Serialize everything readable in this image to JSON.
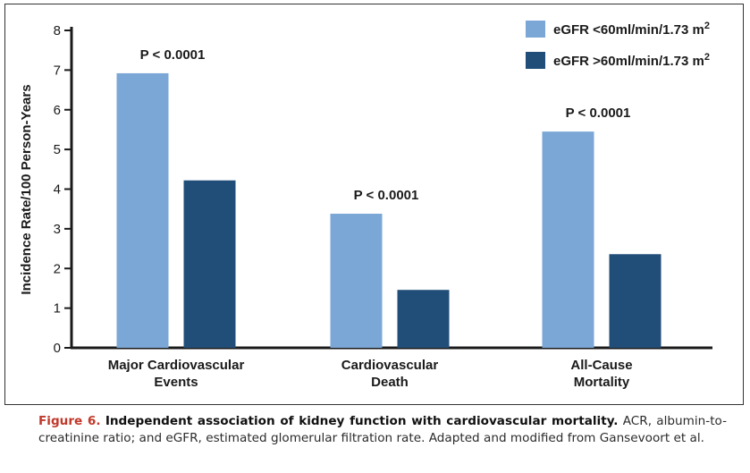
{
  "chart_data": {
    "type": "bar",
    "title": "",
    "xlabel": "",
    "ylabel": "Incidence Rate/100 Person-Years",
    "ylim": [
      0,
      8
    ],
    "yticks": [
      "0",
      "1",
      "2",
      "3",
      "4",
      "5",
      "6",
      "7",
      "8"
    ],
    "grid": false,
    "legend_position": "top-right",
    "categories": [
      [
        "Major Cardiovascular",
        "Events"
      ],
      [
        "Cardiovascular",
        "Death"
      ],
      [
        "All-Cause",
        "Mortality"
      ]
    ],
    "series": [
      {
        "name": "eGFR <60ml/min/1.73 m",
        "superscript": "2",
        "color": "#7ba7d6",
        "values": [
          6.92,
          3.38,
          5.45
        ]
      },
      {
        "name": "eGFR >60ml/min/1.73 m",
        "superscript": "2",
        "color": "#214e78",
        "values": [
          4.22,
          1.46,
          2.36
        ]
      }
    ],
    "annotations": [
      "P < 0.0001",
      "P < 0.0001",
      "P < 0.0001"
    ]
  },
  "caption": {
    "figure_label": "Figure 6.",
    "title": "Independent association of kidney function with cardiovascular mortality.",
    "text": "ACR, albumin-to-creatinine ratio; and eGFR, estimated glomerular filtration rate. Adapted and modified from Gansevoort et al."
  }
}
